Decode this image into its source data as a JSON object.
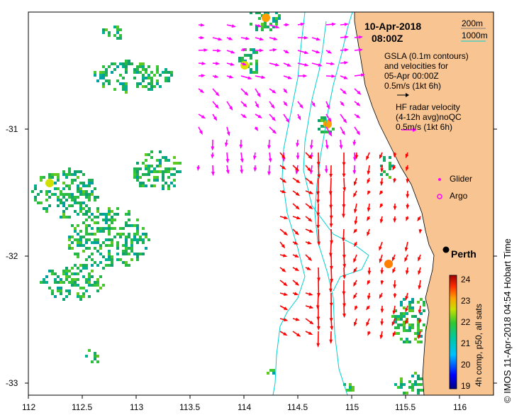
{
  "map": {
    "title_date": "10-Apr-2018",
    "title_time": "08:00Z",
    "legend": {
      "depth_200": "200m",
      "depth_1000": "1000m",
      "gsla_line1": "GSLA (0.1m contours)",
      "gsla_line2": "and velocities for",
      "gsla_line3": "05-Apr 00:00Z",
      "gsla_scale": "0.5m/s (1kt 6h)",
      "hf_line1": "HF radar velocity",
      "hf_line2": "(4-12h avg)noQC",
      "hf_scale": "0.5m/s (1kt 6h)",
      "glider": "Glider",
      "argo": "Argo"
    },
    "city": "Perth",
    "credit": "© IMOS 11-Apr-2018 04:54 Hobart Time",
    "colorbar_title": "4h comp, p50, all sats",
    "colorbar_ticks": [
      "24",
      "23",
      "22",
      "21",
      "20",
      "19"
    ],
    "x_ticks": [
      "112",
      "112.5",
      "113",
      "113.5",
      "114",
      "114.5",
      "115",
      "115.5",
      "116"
    ],
    "y_ticks": [
      "-31",
      "-32",
      "-33"
    ],
    "colors": {
      "land": "#f8c491",
      "gsla_arrows": "#ff00ff",
      "hf_arrows": "#ff0000",
      "isobath": "#00d0d0",
      "glider": "#ff00ff",
      "argo": "#ff00ff"
    }
  },
  "chart_data": {
    "type": "heatmap",
    "xlim": [
      112,
      116.3
    ],
    "ylim": [
      -33.1,
      -30.1
    ],
    "colorbar_range": [
      19,
      24.3
    ],
    "city_marker": {
      "name": "Perth",
      "lon": 115.86,
      "lat": -31.95
    }
  }
}
